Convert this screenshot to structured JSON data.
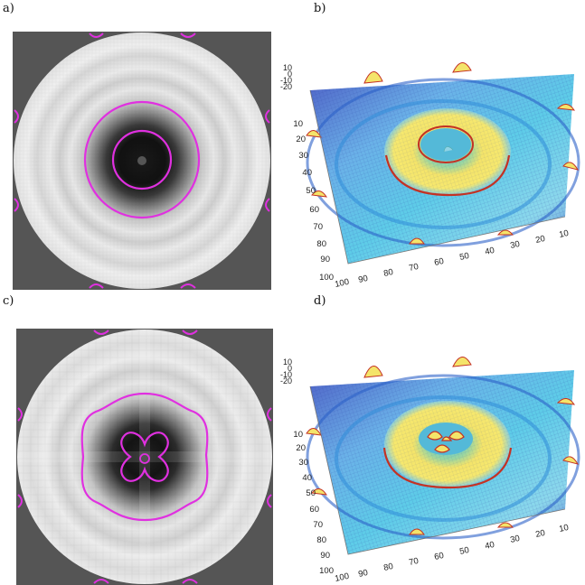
{
  "figure": {
    "panels": [
      {
        "label": "a)"
      },
      {
        "label": "b)"
      },
      {
        "label": "c)"
      },
      {
        "label": "d)"
      }
    ],
    "surface_axes": {
      "z_ticks": [
        "10",
        "0",
        "-10",
        "-20"
      ],
      "y_ticks": [
        "10",
        "20",
        "30",
        "40",
        "50",
        "60",
        "70",
        "80",
        "90",
        "100"
      ],
      "x_ticks": [
        "100",
        "90",
        "80",
        "70",
        "60",
        "50",
        "40",
        "30",
        "20",
        "10"
      ]
    },
    "colors": {
      "contour": "#e030e0",
      "surface_low": "#3b4fc0",
      "surface_mid": "#4cc6e6",
      "surface_high": "#f4e46a",
      "ridge": "#c43224",
      "background_dark": "#555555"
    }
  }
}
